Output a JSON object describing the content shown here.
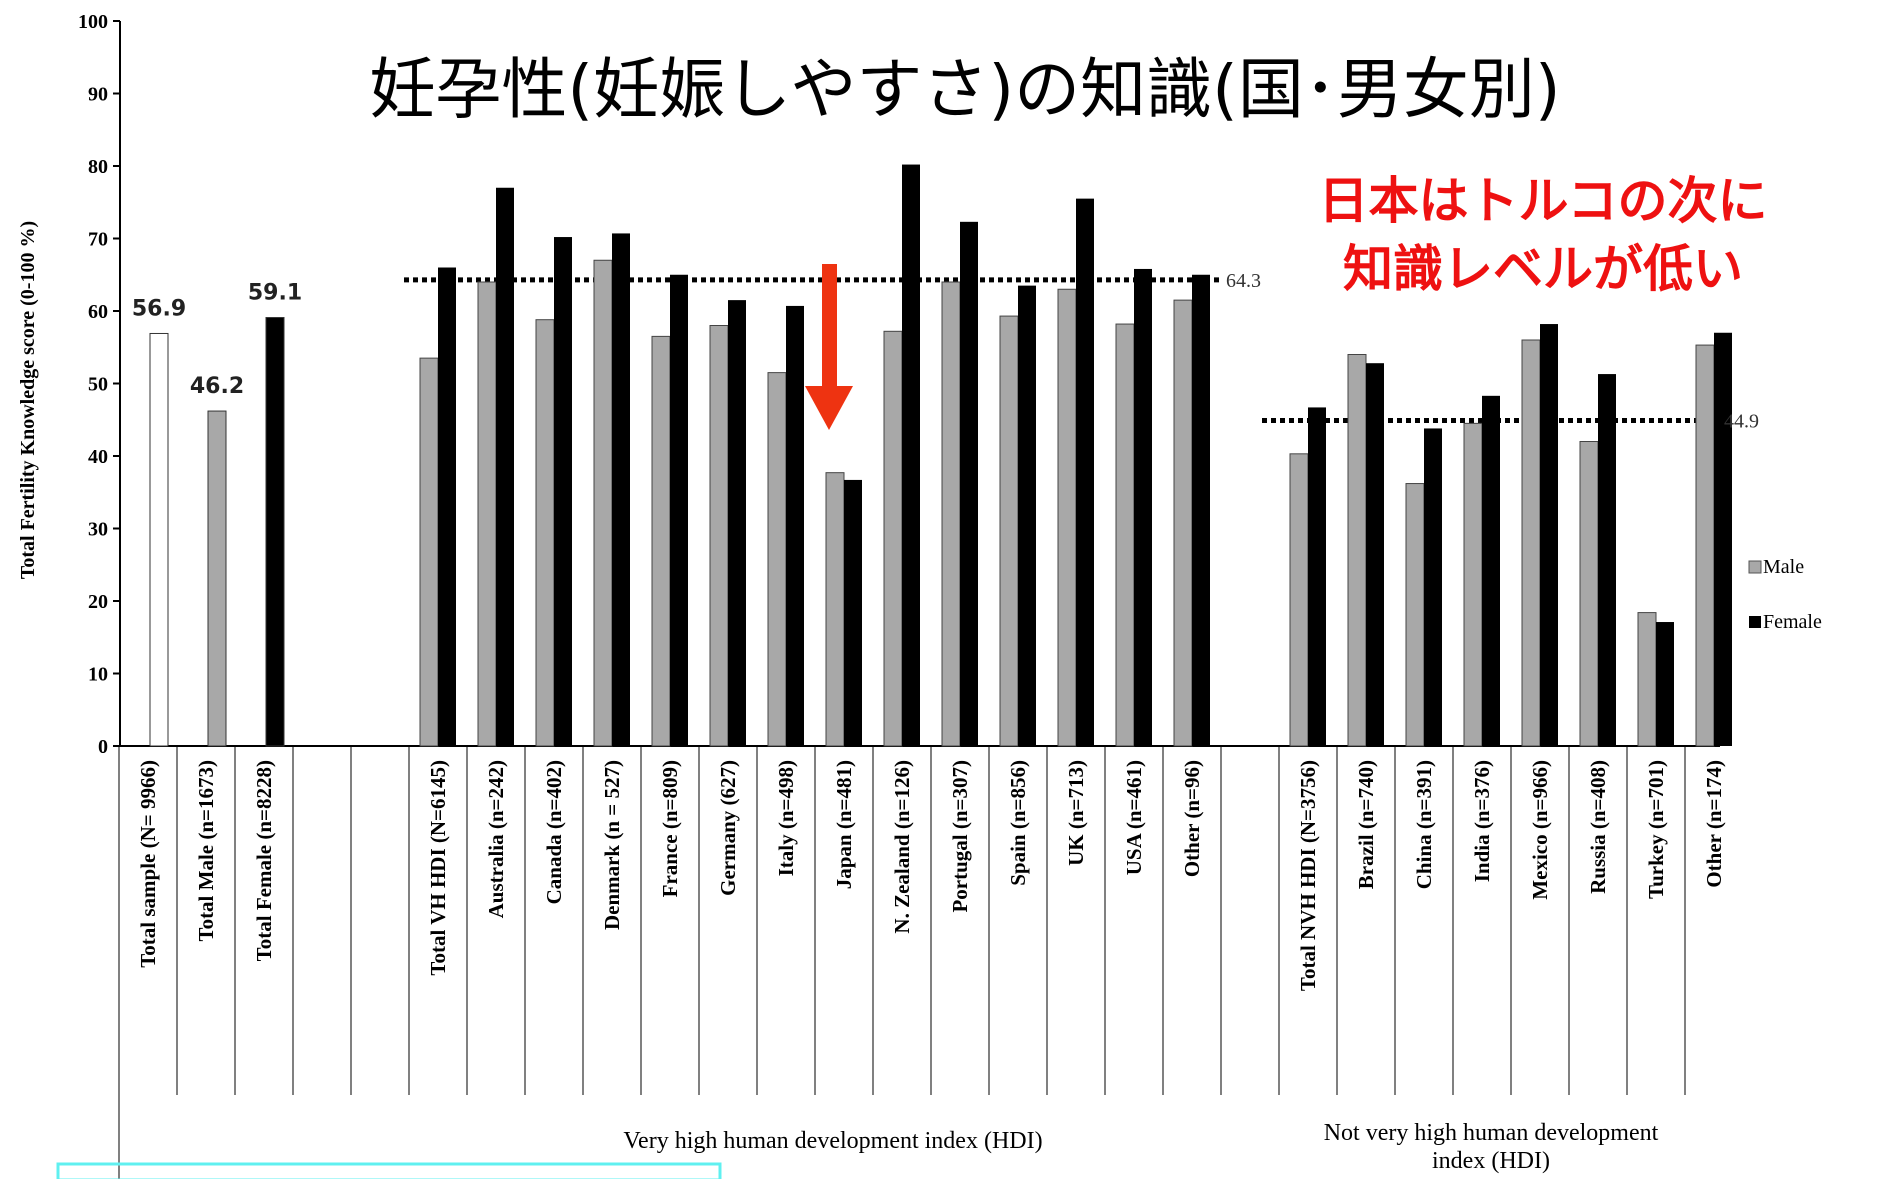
{
  "chart_data": {
    "type": "bar",
    "title": "妊孕性(妊娠しやすさ)の知識(国･男女別)",
    "annotation": {
      "line1": "日本はトルコの次に",
      "line2": "知識レベルが低い",
      "color": "#ee1111"
    },
    "arrow_color": "#ee3311",
    "ylabel": "Total Fertility Knowledge score  (0-100 %)",
    "ylim": [
      0,
      100
    ],
    "yticks": [
      0,
      10,
      20,
      30,
      40,
      50,
      60,
      70,
      80,
      90,
      100
    ],
    "legend": {
      "position": "right",
      "male_label": "Male",
      "female_label": "Female"
    },
    "colors": {
      "total": "#ffffff",
      "male": "#a8a8a8",
      "female": "#000000"
    },
    "groups": [
      {
        "name": "",
        "reference": null,
        "reference_label": ""
      },
      {
        "name": "Very high human development index (HDI)",
        "reference": 64.3,
        "reference_label": "64.3"
      },
      {
        "name": "Not very high human development index (HDI)",
        "reference": 44.9,
        "reference_label": "44.9"
      }
    ],
    "totals": [
      {
        "category": "Total sample (N= 9966)",
        "type": "total",
        "value": 56.9,
        "label": "56.9"
      },
      {
        "category": "Total Male (n=1673)",
        "type": "male",
        "value": 46.2,
        "label": "46.2"
      },
      {
        "category": "Total Female (n=8228)",
        "type": "female",
        "value": 59.1,
        "label": "59.1"
      }
    ],
    "categories": [
      {
        "name": "Total VH HDI (N=6145)",
        "group": 1,
        "male": 53.5,
        "female": 66.0
      },
      {
        "name": "Australia (n=242)",
        "group": 1,
        "male": 64.0,
        "female": 77.0
      },
      {
        "name": "Canada (n=402)",
        "group": 1,
        "male": 58.8,
        "female": 70.2
      },
      {
        "name": "Denmark (n = 527)",
        "group": 1,
        "male": 67.0,
        "female": 70.7
      },
      {
        "name": "France (n=809)",
        "group": 1,
        "male": 56.5,
        "female": 65.0
      },
      {
        "name": "Germany (627)",
        "group": 1,
        "male": 58.0,
        "female": 61.5
      },
      {
        "name": "Italy (n=498)",
        "group": 1,
        "male": 51.5,
        "female": 60.7
      },
      {
        "name": "Japan (n=481)",
        "group": 1,
        "male": 37.7,
        "female": 36.7
      },
      {
        "name": "N. Zealand (n=126)",
        "group": 1,
        "male": 57.2,
        "female": 80.2
      },
      {
        "name": "Portugal (n=307)",
        "group": 1,
        "male": 64.0,
        "female": 72.3
      },
      {
        "name": "Spain (n=856)",
        "group": 1,
        "male": 59.3,
        "female": 63.5
      },
      {
        "name": "UK (n=713)",
        "group": 1,
        "male": 63.0,
        "female": 75.5
      },
      {
        "name": "USA (n=461)",
        "group": 1,
        "male": 58.2,
        "female": 65.8
      },
      {
        "name": "Other (n=96)",
        "group": 1,
        "male": 61.5,
        "female": 65.0
      },
      {
        "name": "Total NVH HDI (N=3756)",
        "group": 2,
        "male": 40.3,
        "female": 46.7
      },
      {
        "name": "Brazil (n=740)",
        "group": 2,
        "male": 54.0,
        "female": 52.8
      },
      {
        "name": "China (n=391)",
        "group": 2,
        "male": 36.2,
        "female": 43.8
      },
      {
        "name": "India (n=376)",
        "group": 2,
        "male": 44.5,
        "female": 48.3
      },
      {
        "name": "Mexico (n=966)",
        "group": 2,
        "male": 56.0,
        "female": 58.2
      },
      {
        "name": "Russia (n=408)",
        "group": 2,
        "male": 42.0,
        "female": 51.3
      },
      {
        "name": "Turkey (n=701)",
        "group": 2,
        "male": 18.4,
        "female": 17.1
      },
      {
        "name": "Other (n=174)",
        "group": 2,
        "male": 55.3,
        "female": 57.0
      }
    ],
    "highlight_category": "Japan (n=481)"
  }
}
